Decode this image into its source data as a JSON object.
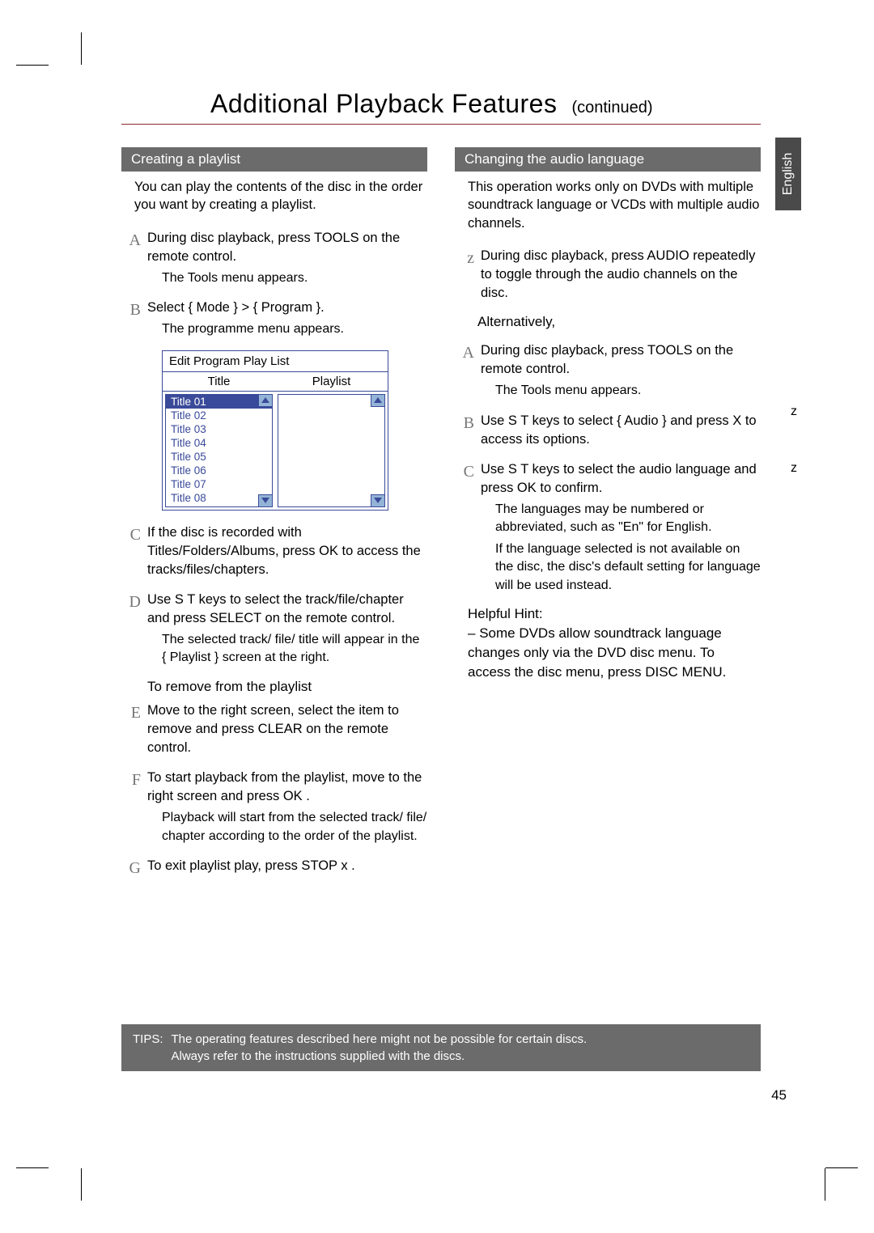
{
  "title": "Additional Playback Features",
  "title_continued": "(continued)",
  "language_tab": "English",
  "page_number": "45",
  "colors": {
    "section_bar_bg": "#6b6b6b",
    "section_bar_text": "#ffffff",
    "title_underline": "#8a2a2a",
    "playlist_border": "#3a4a9a",
    "playlist_scroll_bg": "#93b4d6",
    "lang_tab_bg": "#4a4a4a"
  },
  "left": {
    "section_title": "Creating a playlist",
    "intro": "You can play the contents of the disc in the order you want by creating a playlist.",
    "steps": {
      "A": {
        "text": "During disc playback, press TOOLS  on the remote control.",
        "sub": "The Tools menu appears."
      },
      "B": {
        "text": "Select { Mode } > { Program  }.",
        "sub": "The programme menu appears."
      },
      "C": {
        "text": "If the disc is recorded with Titles/Folders/Albums, press OK  to access the tracks/files/chapters."
      },
      "D": {
        "text": "Use  S T  keys to select the track/file/chapter and press SELECT  on the remote control.",
        "sub": "The selected track/ file/ title will appear in the { Playlist  } screen at the right."
      },
      "remove_heading": "To remove from the playlist",
      "E": {
        "text": "Move to the right screen, select the item to remove and press CLEAR  on the remote control."
      },
      "F": {
        "text": "To start playback from the playlist, move to the right screen and press OK .",
        "sub": "Playback will start from the selected track/ file/ chapter according to the order of the playlist."
      },
      "G": {
        "text": "To exit playlist play, press STOP  x ."
      }
    },
    "playlist_box": {
      "window_title": "Edit Program Play List",
      "left_header": "Title",
      "right_header": "Playlist",
      "items": [
        "Title 01",
        "Title 02",
        "Title 03",
        "Title 04",
        "Title 05",
        "Title 06",
        "Title 07",
        "Title 08"
      ]
    }
  },
  "right": {
    "section_title": "Changing the audio language",
    "intro": "This operation works only on DVDs with multiple soundtrack language or VCDs with multiple audio channels.",
    "z_step": "During disc playback, press AUDIO repeatedly to toggle through the audio channels on the disc.",
    "alternatively": "Alternatively,",
    "steps": {
      "A": {
        "text": "During disc playback, press TOOLS  on the remote control.",
        "sub": "The Tools menu appears."
      },
      "B": {
        "text": "Use  S T  keys to select { Audio  } and press  X to access its options."
      },
      "C": {
        "text": "Use  S T  keys to select the audio language and press OK  to confirm.",
        "sub1": "The languages may be numbered or abbreviated, such as \"En\" for English.",
        "sub2": "If the language selected is not available on the disc, the disc's default setting for language will be used instead."
      }
    },
    "hint_label": "Helpful Hint:",
    "hint_text": "Some DVDs allow soundtrack language changes only via the DVD disc menu. To access the disc menu, press DISC MENU."
  },
  "tips": {
    "label": "TIPS:",
    "line1": "The operating features described here might not be possible for certain discs.",
    "line2": "Always refer to the instructions supplied with the discs."
  },
  "side_marks": {
    "z1": "z",
    "z2": "z"
  }
}
